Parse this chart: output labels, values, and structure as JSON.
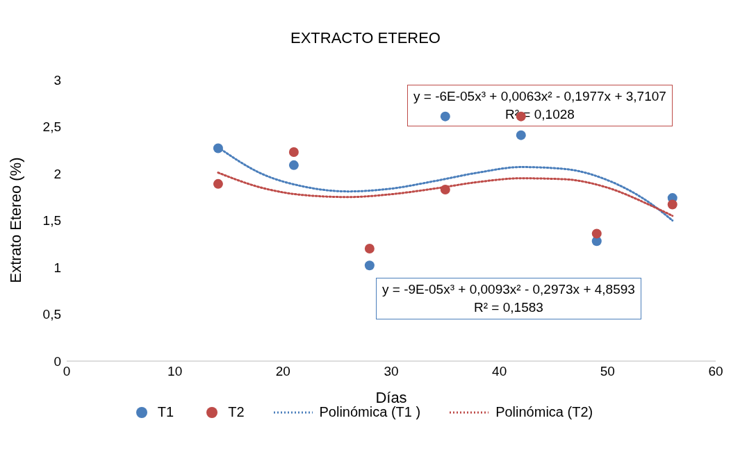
{
  "chart_data": {
    "type": "scatter",
    "title": "EXTRACTO ETEREO",
    "xlabel": "Días",
    "ylabel": "Extrato Etereo (%)",
    "xlim": [
      0,
      60
    ],
    "xticks": [
      0,
      10,
      20,
      30,
      40,
      50,
      60
    ],
    "ylim": [
      0,
      3
    ],
    "yticks": [
      0,
      {
        "value": 0.5,
        "label": "0,5"
      },
      1,
      {
        "value": 1.5,
        "label": "1,5"
      },
      2,
      {
        "value": 2.5,
        "label": "2,5"
      },
      3
    ],
    "legend": "bottom",
    "marker": "circle",
    "x": [
      14,
      21,
      28,
      35,
      42,
      49,
      56
    ],
    "series": [
      {
        "name": "T1",
        "color": "#4a7ebb",
        "values": [
          2.27,
          2.09,
          1.02,
          2.61,
          2.41,
          1.28,
          1.74
        ]
      },
      {
        "name": "T2",
        "color": "#be4b48",
        "values": [
          1.89,
          2.23,
          1.2,
          1.83,
          2.61,
          1.36,
          1.67
        ]
      },
      {
        "name": "Polinómica (T1 )",
        "type": "line",
        "line_style": "dotted",
        "marker": "none",
        "color": "#4a7ebb",
        "x": [
          14,
          18,
          22,
          26,
          30,
          34,
          38,
          42,
          46,
          50,
          54,
          56
        ],
        "values": [
          2.28,
          2.0,
          1.86,
          1.81,
          1.84,
          1.92,
          2.01,
          2.07,
          2.05,
          1.93,
          1.68,
          1.5
        ]
      },
      {
        "name": "Polinómica (T2)",
        "type": "line",
        "line_style": "dotted",
        "marker": "none",
        "color": "#be4b48",
        "x": [
          14,
          18,
          22,
          26,
          30,
          34,
          38,
          42,
          46,
          50,
          54,
          56
        ],
        "values": [
          2.01,
          1.85,
          1.77,
          1.75,
          1.78,
          1.84,
          1.91,
          1.95,
          1.94,
          1.85,
          1.66,
          1.55
        ]
      }
    ],
    "annotations": [
      "y = -6E-05x³ + 0,0063x² - 0,1977x + 3,7107\nR² = 0,1028",
      "y = -9E-05x³ + 0,0093x² - 0,2973x + 4,8593\nR² = 0,1583"
    ]
  }
}
